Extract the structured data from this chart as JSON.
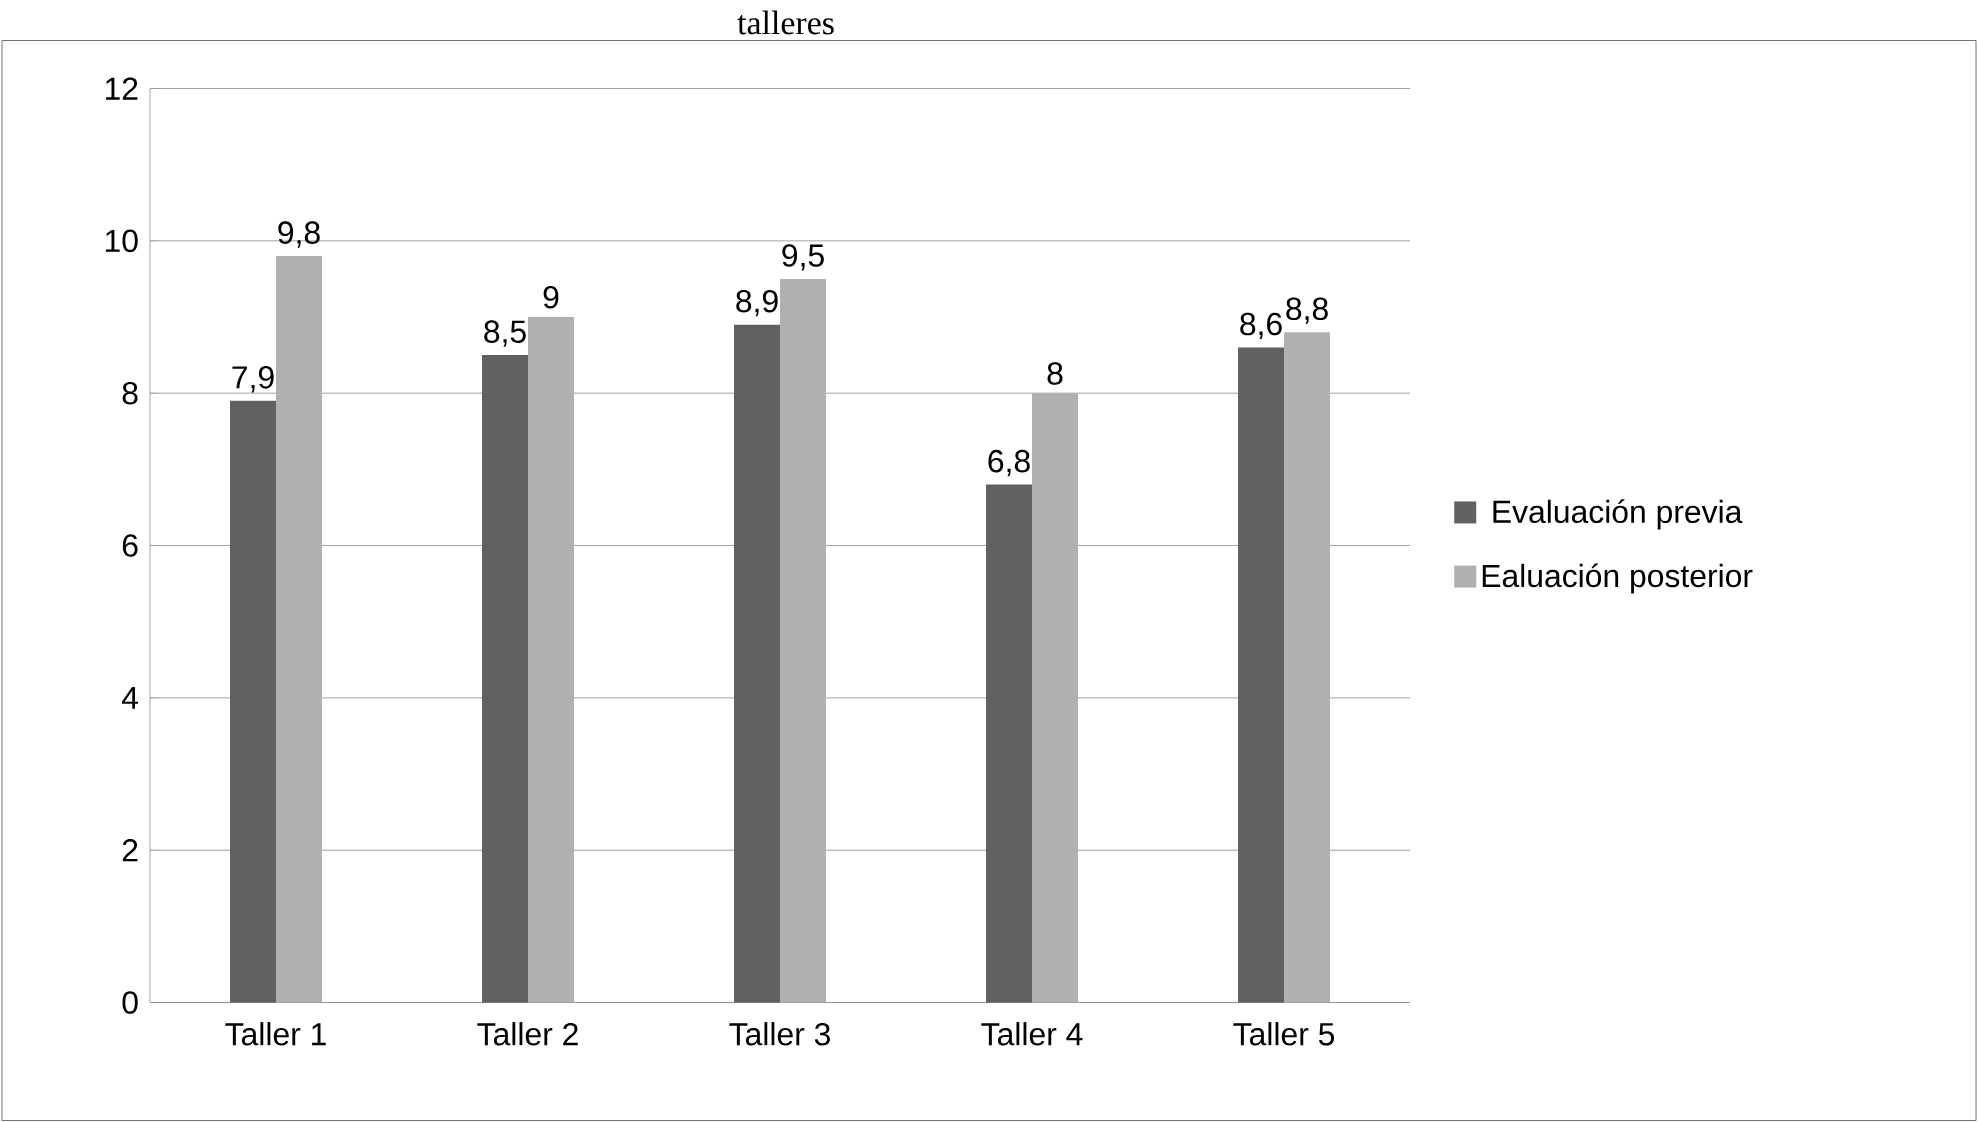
{
  "chart_data": {
    "type": "bar",
    "title": "talleres",
    "categories": [
      "Taller 1",
      "Taller 2",
      "Taller 3",
      "Taller 4",
      "Taller 5"
    ],
    "series": [
      {
        "name": "Evaluación previa",
        "color": "#616161",
        "values": [
          7.9,
          8.5,
          8.9,
          6.8,
          8.6
        ],
        "value_labels": [
          "7,9",
          "8,5",
          "8,9",
          "6,8",
          "8,6"
        ]
      },
      {
        "name": "Ealuación posterior",
        "color": "#b0b0b0",
        "values": [
          9.8,
          9,
          9.5,
          8,
          8.8
        ],
        "value_labels": [
          "9,8",
          "9",
          "9,5",
          "8",
          "8,8"
        ]
      }
    ],
    "ylim": [
      0,
      12
    ],
    "yticks": [
      0,
      2,
      4,
      6,
      8,
      10,
      12
    ],
    "grid": "y",
    "legend": "right"
  }
}
